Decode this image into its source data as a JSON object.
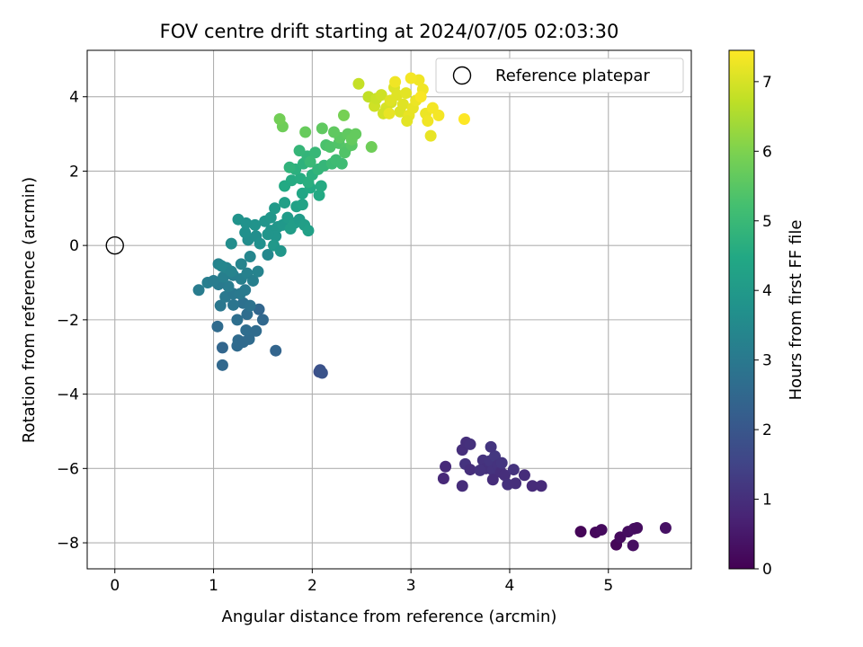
{
  "chart_data": {
    "type": "scatter",
    "title": "FOV centre drift starting at 2024/07/05 02:03:30",
    "xlabel": "Angular distance from reference (arcmin)",
    "ylabel": "Rotation from reference (arcmin)",
    "xlim": [
      -0.28,
      5.84
    ],
    "ylim": [
      -8.7,
      5.25
    ],
    "xticks": [
      0,
      1,
      2,
      3,
      4,
      5
    ],
    "yticks": [
      -8,
      -6,
      -4,
      -2,
      0,
      2,
      4
    ],
    "grid": true,
    "legend": {
      "position": "top-right",
      "entries": [
        "Reference platepar"
      ]
    },
    "reference_point": {
      "x": 0,
      "y": 0
    },
    "colorbar": {
      "label": "Hours from first FF file",
      "colormap": "viridis",
      "range": [
        0,
        7.45
      ],
      "ticks": [
        0,
        1,
        2,
        3,
        4,
        5,
        6,
        7
      ]
    },
    "series": [
      {
        "points": [
          {
            "x": 4.72,
            "y": -7.7,
            "c": 0.1
          },
          {
            "x": 4.87,
            "y": -7.72,
            "c": 0.15
          },
          {
            "x": 4.93,
            "y": -7.65,
            "c": 0.2
          },
          {
            "x": 5.08,
            "y": -8.05,
            "c": 0.1
          },
          {
            "x": 5.12,
            "y": -7.85,
            "c": 0.2
          },
          {
            "x": 5.2,
            "y": -7.7,
            "c": 0.25
          },
          {
            "x": 5.25,
            "y": -8.07,
            "c": 0.3
          },
          {
            "x": 5.26,
            "y": -7.62,
            "c": 0.3
          },
          {
            "x": 5.29,
            "y": -7.6,
            "c": 0.25
          },
          {
            "x": 5.58,
            "y": -7.6,
            "c": 0.35
          },
          {
            "x": 3.35,
            "y": -5.95,
            "c": 0.9
          },
          {
            "x": 3.33,
            "y": -6.27,
            "c": 0.85
          },
          {
            "x": 3.52,
            "y": -5.5,
            "c": 1.0
          },
          {
            "x": 3.56,
            "y": -5.3,
            "c": 1.0
          },
          {
            "x": 3.6,
            "y": -5.35,
            "c": 1.05
          },
          {
            "x": 3.55,
            "y": -5.88,
            "c": 1.1
          },
          {
            "x": 3.6,
            "y": -6.03,
            "c": 1.0
          },
          {
            "x": 3.52,
            "y": -6.47,
            "c": 0.95
          },
          {
            "x": 3.73,
            "y": -5.78,
            "c": 1.1
          },
          {
            "x": 3.76,
            "y": -6.0,
            "c": 1.05
          },
          {
            "x": 3.8,
            "y": -5.8,
            "c": 1.15
          },
          {
            "x": 3.83,
            "y": -6.05,
            "c": 1.1
          },
          {
            "x": 3.85,
            "y": -5.67,
            "c": 1.2
          },
          {
            "x": 3.81,
            "y": -5.42,
            "c": 1.15
          },
          {
            "x": 3.88,
            "y": -5.92,
            "c": 1.1
          },
          {
            "x": 3.91,
            "y": -6.1,
            "c": 1.0
          },
          {
            "x": 3.83,
            "y": -6.3,
            "c": 0.95
          },
          {
            "x": 3.95,
            "y": -6.18,
            "c": 1.0
          },
          {
            "x": 3.98,
            "y": -6.43,
            "c": 1.05
          },
          {
            "x": 4.04,
            "y": -6.03,
            "c": 1.1
          },
          {
            "x": 4.06,
            "y": -6.4,
            "c": 1.0
          },
          {
            "x": 4.15,
            "y": -6.18,
            "c": 0.95
          },
          {
            "x": 4.23,
            "y": -6.47,
            "c": 0.9
          },
          {
            "x": 4.32,
            "y": -6.47,
            "c": 0.9
          },
          {
            "x": 3.7,
            "y": -6.05,
            "c": 1.1
          },
          {
            "x": 3.92,
            "y": -5.85,
            "c": 1.15
          },
          {
            "x": 2.07,
            "y": -3.4,
            "c": 1.8
          },
          {
            "x": 2.08,
            "y": -3.35,
            "c": 1.85
          },
          {
            "x": 2.1,
            "y": -3.43,
            "c": 1.9
          },
          {
            "x": 1.09,
            "y": -3.22,
            "c": 2.5
          },
          {
            "x": 1.09,
            "y": -2.75,
            "c": 2.45
          },
          {
            "x": 1.63,
            "y": -2.83,
            "c": 2.4
          },
          {
            "x": 1.04,
            "y": -2.18,
            "c": 2.6
          },
          {
            "x": 1.24,
            "y": -2.7,
            "c": 2.55
          },
          {
            "x": 1.25,
            "y": -2.55,
            "c": 2.6
          },
          {
            "x": 1.3,
            "y": -2.6,
            "c": 2.55
          },
          {
            "x": 1.36,
            "y": -2.52,
            "c": 2.6
          },
          {
            "x": 1.33,
            "y": -2.28,
            "c": 2.65
          },
          {
            "x": 1.43,
            "y": -2.3,
            "c": 2.6
          },
          {
            "x": 1.5,
            "y": -2.0,
            "c": 2.5
          },
          {
            "x": 1.46,
            "y": -1.72,
            "c": 2.45
          },
          {
            "x": 1.24,
            "y": -2.0,
            "c": 2.7
          },
          {
            "x": 1.34,
            "y": -1.85,
            "c": 2.65
          },
          {
            "x": 1.3,
            "y": -1.55,
            "c": 2.75
          },
          {
            "x": 1.37,
            "y": -1.62,
            "c": 2.8
          },
          {
            "x": 1.2,
            "y": -1.6,
            "c": 2.9
          },
          {
            "x": 1.07,
            "y": -1.62,
            "c": 2.95
          },
          {
            "x": 1.12,
            "y": -1.38,
            "c": 3.0
          },
          {
            "x": 1.2,
            "y": -1.3,
            "c": 2.95
          },
          {
            "x": 1.27,
            "y": -1.3,
            "c": 3.0
          },
          {
            "x": 1.32,
            "y": -1.2,
            "c": 3.05
          },
          {
            "x": 1.15,
            "y": -1.1,
            "c": 3.1
          },
          {
            "x": 1.05,
            "y": -1.05,
            "c": 3.05
          },
          {
            "x": 0.85,
            "y": -1.2,
            "c": 3.1
          },
          {
            "x": 0.94,
            "y": -1.0,
            "c": 3.15
          },
          {
            "x": 1.0,
            "y": -0.95,
            "c": 3.1
          },
          {
            "x": 1.1,
            "y": -0.85,
            "c": 3.2
          },
          {
            "x": 1.2,
            "y": -0.8,
            "c": 3.15
          },
          {
            "x": 1.28,
            "y": -0.9,
            "c": 3.2
          },
          {
            "x": 1.34,
            "y": -0.75,
            "c": 3.25
          },
          {
            "x": 1.4,
            "y": -0.95,
            "c": 3.2
          },
          {
            "x": 1.45,
            "y": -0.7,
            "c": 3.3
          },
          {
            "x": 1.05,
            "y": -0.5,
            "c": 3.3
          },
          {
            "x": 1.13,
            "y": -0.6,
            "c": 3.35
          },
          {
            "x": 1.18,
            "y": -0.7,
            "c": 3.3
          },
          {
            "x": 1.28,
            "y": -0.5,
            "c": 3.35
          },
          {
            "x": 1.37,
            "y": -0.3,
            "c": 3.4
          },
          {
            "x": 1.55,
            "y": -0.25,
            "c": 3.45
          },
          {
            "x": 1.08,
            "y": -0.55,
            "c": 3.4
          },
          {
            "x": 1.18,
            "y": 0.05,
            "c": 3.6
          },
          {
            "x": 1.35,
            "y": 0.15,
            "c": 3.6
          },
          {
            "x": 1.32,
            "y": 0.35,
            "c": 3.7
          },
          {
            "x": 1.43,
            "y": 0.25,
            "c": 3.65
          },
          {
            "x": 1.47,
            "y": 0.05,
            "c": 3.7
          },
          {
            "x": 1.25,
            "y": 0.7,
            "c": 3.8
          },
          {
            "x": 1.33,
            "y": 0.6,
            "c": 3.75
          },
          {
            "x": 1.42,
            "y": 0.55,
            "c": 3.8
          },
          {
            "x": 1.52,
            "y": 0.65,
            "c": 3.85
          },
          {
            "x": 1.58,
            "y": 0.75,
            "c": 3.9
          },
          {
            "x": 1.58,
            "y": 0.4,
            "c": 3.85
          },
          {
            "x": 1.65,
            "y": 0.5,
            "c": 3.9
          },
          {
            "x": 1.63,
            "y": 0.25,
            "c": 3.85
          },
          {
            "x": 1.7,
            "y": 0.55,
            "c": 3.95
          },
          {
            "x": 1.55,
            "y": 0.3,
            "c": 3.85
          },
          {
            "x": 1.62,
            "y": 1.0,
            "c": 4.0
          },
          {
            "x": 1.75,
            "y": 0.75,
            "c": 4.05
          },
          {
            "x": 1.82,
            "y": 0.6,
            "c": 4.1
          },
          {
            "x": 1.87,
            "y": 0.7,
            "c": 4.05
          },
          {
            "x": 1.78,
            "y": 0.45,
            "c": 4.1
          },
          {
            "x": 1.92,
            "y": 0.55,
            "c": 4.15
          },
          {
            "x": 1.96,
            "y": 0.4,
            "c": 4.2
          },
          {
            "x": 1.72,
            "y": 1.15,
            "c": 4.2
          },
          {
            "x": 1.84,
            "y": 1.05,
            "c": 4.25
          },
          {
            "x": 1.9,
            "y": 1.1,
            "c": 4.3
          },
          {
            "x": 1.61,
            "y": 0.0,
            "c": 3.95
          },
          {
            "x": 1.68,
            "y": -0.15,
            "c": 3.9
          },
          {
            "x": 1.9,
            "y": 1.4,
            "c": 4.4
          },
          {
            "x": 2.07,
            "y": 1.35,
            "c": 4.5
          },
          {
            "x": 2.09,
            "y": 1.6,
            "c": 4.55
          },
          {
            "x": 1.98,
            "y": 1.55,
            "c": 4.5
          },
          {
            "x": 1.79,
            "y": 1.75,
            "c": 4.55
          },
          {
            "x": 1.72,
            "y": 1.6,
            "c": 4.5
          },
          {
            "x": 1.88,
            "y": 1.8,
            "c": 4.6
          },
          {
            "x": 1.96,
            "y": 1.7,
            "c": 4.65
          },
          {
            "x": 2.0,
            "y": 1.9,
            "c": 4.7
          },
          {
            "x": 1.83,
            "y": 2.05,
            "c": 4.7
          },
          {
            "x": 1.91,
            "y": 2.2,
            "c": 4.75
          },
          {
            "x": 1.77,
            "y": 2.1,
            "c": 4.8
          },
          {
            "x": 1.95,
            "y": 2.4,
            "c": 4.85
          },
          {
            "x": 1.87,
            "y": 2.55,
            "c": 4.9
          },
          {
            "x": 2.06,
            "y": 2.05,
            "c": 4.85
          },
          {
            "x": 2.12,
            "y": 2.15,
            "c": 4.9
          },
          {
            "x": 2.03,
            "y": 2.5,
            "c": 4.95
          },
          {
            "x": 1.98,
            "y": 2.25,
            "c": 5.0
          },
          {
            "x": 2.2,
            "y": 2.2,
            "c": 5.05
          },
          {
            "x": 2.24,
            "y": 2.3,
            "c": 5.1
          },
          {
            "x": 2.3,
            "y": 2.2,
            "c": 5.1
          },
          {
            "x": 2.14,
            "y": 2.7,
            "c": 5.3
          },
          {
            "x": 2.18,
            "y": 2.65,
            "c": 5.35
          },
          {
            "x": 2.27,
            "y": 2.75,
            "c": 5.4
          },
          {
            "x": 2.34,
            "y": 2.6,
            "c": 5.45
          },
          {
            "x": 2.33,
            "y": 2.5,
            "c": 5.4
          },
          {
            "x": 2.4,
            "y": 2.7,
            "c": 5.5
          },
          {
            "x": 2.28,
            "y": 2.9,
            "c": 5.55
          },
          {
            "x": 2.22,
            "y": 3.05,
            "c": 5.6
          },
          {
            "x": 2.36,
            "y": 3.0,
            "c": 5.6
          },
          {
            "x": 2.4,
            "y": 2.85,
            "c": 5.65
          },
          {
            "x": 2.44,
            "y": 3.0,
            "c": 5.65
          },
          {
            "x": 2.1,
            "y": 3.15,
            "c": 5.6
          },
          {
            "x": 1.93,
            "y": 3.05,
            "c": 5.7
          },
          {
            "x": 1.7,
            "y": 3.2,
            "c": 5.8
          },
          {
            "x": 1.67,
            "y": 3.4,
            "c": 5.85
          },
          {
            "x": 2.32,
            "y": 3.5,
            "c": 5.9
          },
          {
            "x": 2.6,
            "y": 2.65,
            "c": 5.8
          },
          {
            "x": 2.47,
            "y": 4.35,
            "c": 6.8
          },
          {
            "x": 2.57,
            "y": 4.0,
            "c": 6.75
          },
          {
            "x": 2.63,
            "y": 3.75,
            "c": 6.9
          },
          {
            "x": 2.65,
            "y": 3.95,
            "c": 6.85
          },
          {
            "x": 2.7,
            "y": 4.05,
            "c": 6.9
          },
          {
            "x": 2.75,
            "y": 3.7,
            "c": 7.0
          },
          {
            "x": 2.72,
            "y": 3.55,
            "c": 6.95
          },
          {
            "x": 2.8,
            "y": 3.85,
            "c": 7.0
          },
          {
            "x": 2.83,
            "y": 4.25,
            "c": 7.05
          },
          {
            "x": 2.86,
            "y": 4.05,
            "c": 7.1
          },
          {
            "x": 2.89,
            "y": 3.6,
            "c": 7.05
          },
          {
            "x": 2.92,
            "y": 3.8,
            "c": 7.1
          },
          {
            "x": 2.95,
            "y": 4.1,
            "c": 7.15
          },
          {
            "x": 2.98,
            "y": 3.5,
            "c": 7.2
          },
          {
            "x": 2.96,
            "y": 3.35,
            "c": 7.15
          },
          {
            "x": 3.02,
            "y": 3.7,
            "c": 7.2
          },
          {
            "x": 3.05,
            "y": 3.9,
            "c": 7.25
          },
          {
            "x": 3.08,
            "y": 4.45,
            "c": 7.3
          },
          {
            "x": 3.12,
            "y": 4.2,
            "c": 7.3
          },
          {
            "x": 3.15,
            "y": 3.55,
            "c": 7.25
          },
          {
            "x": 3.17,
            "y": 3.35,
            "c": 7.3
          },
          {
            "x": 3.22,
            "y": 3.7,
            "c": 7.35
          },
          {
            "x": 3.2,
            "y": 2.95,
            "c": 7.2
          },
          {
            "x": 3.28,
            "y": 3.5,
            "c": 7.35
          },
          {
            "x": 3.0,
            "y": 4.5,
            "c": 7.35
          },
          {
            "x": 2.84,
            "y": 4.4,
            "c": 7.3
          },
          {
            "x": 2.79,
            "y": 3.9,
            "c": 7.1
          },
          {
            "x": 3.1,
            "y": 4.0,
            "c": 7.4
          },
          {
            "x": 3.54,
            "y": 3.4,
            "c": 7.45
          },
          {
            "x": 2.78,
            "y": 3.55,
            "c": 7.2
          }
        ]
      }
    ]
  }
}
